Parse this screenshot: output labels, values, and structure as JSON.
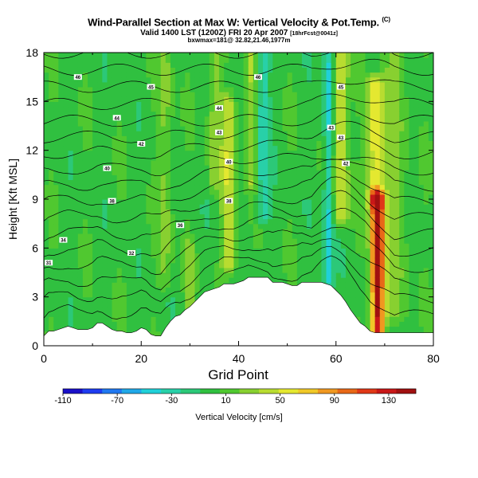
{
  "chart_data": {
    "type": "heatmap",
    "title": "Wind-Parallel Section at Max W: Vertical Velocity & Pot.Temp.",
    "title_mark": "(C)",
    "subtitle": "Valid 1400 LST (1200Z) FRI 20 Apr 2007",
    "subtitle_note": "[18hrFcst@0041z]",
    "subtitle2": "bxwmax=181@ 32.82,21.46,1977m",
    "xlabel": "Grid Point",
    "ylabel": "Height [Kft MSL]",
    "xlim": [
      0,
      80
    ],
    "ylim": [
      0,
      18
    ],
    "x_ticks": [
      "0",
      "20",
      "40",
      "60",
      "80"
    ],
    "y_ticks": [
      "0",
      "3",
      "6",
      "9",
      "12",
      "15",
      "18"
    ],
    "colorbar": {
      "label": "Vertical Velocity [cm/s]",
      "range": [
        -110,
        150
      ],
      "tick_labels": [
        "-110",
        "-70",
        "-30",
        "10",
        "50",
        "90",
        "130"
      ],
      "colors": [
        "#1a10c8",
        "#1e3cf0",
        "#2078f0",
        "#20a8e8",
        "#20d0d8",
        "#28d0a8",
        "#2cc878",
        "#30c040",
        "#50c830",
        "#88d030",
        "#b8dc30",
        "#e4e830",
        "#f0c828",
        "#f09820",
        "#e86818",
        "#e03818",
        "#c81818",
        "#a01010"
      ]
    },
    "terrain_profile": {
      "x": [
        0,
        1,
        2,
        3,
        4,
        5,
        6,
        7,
        8,
        9,
        10,
        11,
        12,
        13,
        14,
        15,
        16,
        17,
        18,
        19,
        20,
        21,
        22,
        23,
        24,
        25,
        26,
        27,
        28,
        29,
        30,
        31,
        32,
        33,
        34,
        35,
        36,
        37,
        38,
        39,
        40,
        41,
        42,
        43,
        44,
        45,
        46,
        47,
        48,
        49,
        50,
        51,
        52,
        53,
        54,
        55,
        56,
        57,
        58,
        59,
        60,
        61,
        62,
        63,
        64,
        65,
        66,
        67,
        68,
        69,
        70,
        71,
        72,
        73,
        74,
        75,
        76,
        77,
        78,
        79,
        80
      ],
      "height_kft": [
        0.6,
        0.9,
        0.9,
        1.0,
        1.1,
        1.2,
        1.1,
        1.0,
        1.0,
        1.0,
        1.1,
        1.4,
        1.4,
        1.2,
        1.0,
        0.9,
        0.9,
        0.8,
        0.8,
        0.9,
        1.1,
        1.0,
        0.7,
        0.6,
        0.6,
        1.1,
        1.5,
        1.8,
        1.9,
        2.2,
        2.4,
        2.7,
        3.0,
        3.3,
        3.4,
        3.5,
        3.6,
        3.8,
        3.8,
        3.8,
        3.9,
        4.0,
        4.2,
        4.2,
        4.2,
        4.2,
        4.2,
        3.9,
        3.9,
        3.9,
        3.8,
        3.7,
        3.7,
        3.9,
        3.9,
        3.9,
        3.9,
        3.9,
        3.8,
        3.7,
        3.4,
        3.1,
        2.7,
        2.2,
        1.8,
        1.4,
        1.2,
        0.9,
        0.8,
        0.8,
        0.8,
        0.8,
        0.8,
        0.8,
        0.8,
        0.8,
        0.8,
        0.8,
        0.8,
        0.8,
        0.8
      ]
    },
    "vertical_velocity_bands": [
      {
        "x": 68.5,
        "halfwidth": 1.4,
        "cms": 140,
        "zmin": 0,
        "zmax": 9
      },
      {
        "x": 68.0,
        "halfwidth": 1.8,
        "cms": 60,
        "zmin": 9,
        "zmax": 16
      },
      {
        "x": 61.0,
        "halfwidth": 1.5,
        "cms": 55,
        "zmin": 8,
        "zmax": 18
      },
      {
        "x": 58.5,
        "halfwidth": 1.0,
        "cms": -45,
        "zmin": 4,
        "zmax": 18
      },
      {
        "x": 38.0,
        "halfwidth": 1.5,
        "cms": 45,
        "zmin": 5,
        "zmax": 15
      },
      {
        "x": 45.0,
        "halfwidth": 1.2,
        "cms": -35,
        "zmin": 8,
        "zmax": 18
      },
      {
        "x": 42.5,
        "halfwidth": 1.2,
        "cms": 30,
        "zmin": 10,
        "zmax": 18
      },
      {
        "x": 30.0,
        "halfwidth": 1.0,
        "cms": 30,
        "zmin": 2,
        "zmax": 6
      },
      {
        "x": 25.0,
        "halfwidth": 1.5,
        "cms": 25,
        "zmin": 4,
        "zmax": 18
      },
      {
        "x": 35.0,
        "halfwidth": 1.5,
        "cms": 25,
        "zmin": 10,
        "zmax": 18
      },
      {
        "x": 72.0,
        "halfwidth": 3.0,
        "cms": 22,
        "zmin": 2,
        "zmax": 18
      }
    ],
    "theta_contour_labels": [
      {
        "text": "46",
        "x": 7,
        "z": 16.5
      },
      {
        "text": "45",
        "x": 22,
        "z": 15.9
      },
      {
        "text": "44",
        "x": 15,
        "z": 14.0
      },
      {
        "text": "44",
        "x": 36,
        "z": 14.6
      },
      {
        "text": "42",
        "x": 20,
        "z": 12.4
      },
      {
        "text": "43",
        "x": 36,
        "z": 13.1
      },
      {
        "text": "40",
        "x": 13,
        "z": 10.9
      },
      {
        "text": "40",
        "x": 38,
        "z": 11.3
      },
      {
        "text": "38",
        "x": 14,
        "z": 8.9
      },
      {
        "text": "38",
        "x": 38,
        "z": 8.9
      },
      {
        "text": "36",
        "x": 28,
        "z": 7.4
      },
      {
        "text": "34",
        "x": 4,
        "z": 6.5
      },
      {
        "text": "32",
        "x": 18,
        "z": 5.7
      },
      {
        "text": "31",
        "x": 1,
        "z": 5.1
      },
      {
        "text": "46",
        "x": 44,
        "z": 16.5
      },
      {
        "text": "45",
        "x": 61,
        "z": 15.9
      },
      {
        "text": "43",
        "x": 59,
        "z": 13.4
      },
      {
        "text": "43",
        "x": 61,
        "z": 12.8
      },
      {
        "text": "42",
        "x": 62,
        "z": 11.2
      }
    ]
  }
}
